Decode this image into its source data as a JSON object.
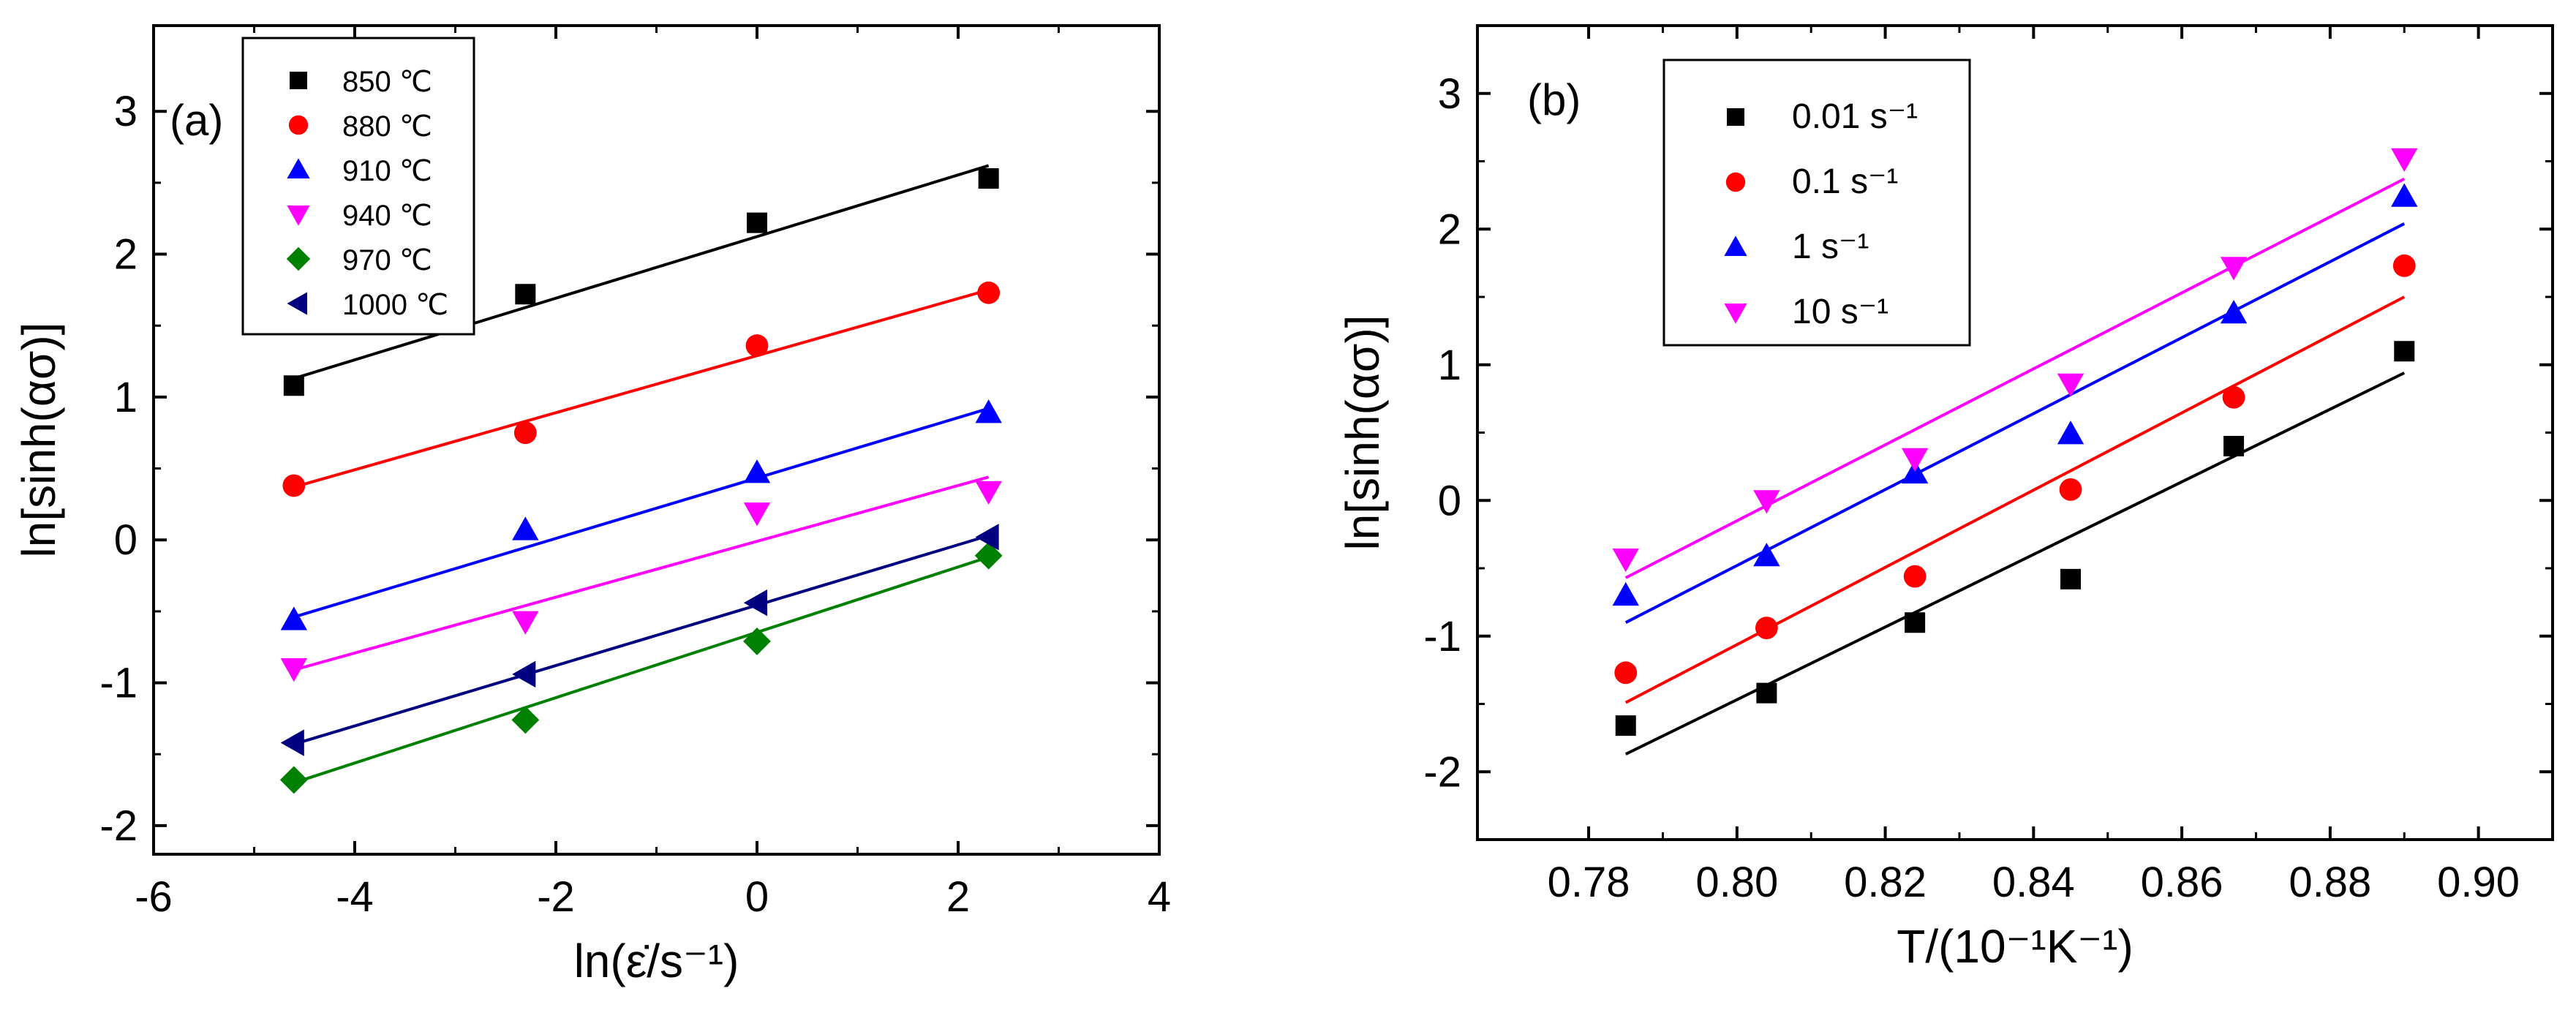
{
  "chart_data": [
    {
      "type": "scatter",
      "panel_label": "(a)",
      "xlabel": "ln(ε̇/s⁻¹)",
      "ylabel": "ln[sinh(ασ)]",
      "xlim": [
        -6,
        4
      ],
      "ylim": [
        -2.2,
        3.6
      ],
      "x_ticks": [
        -6,
        -4,
        -2,
        0,
        2,
        4
      ],
      "x_tick_labels": [
        "-6",
        "-4",
        "-2",
        "0",
        "2",
        "4"
      ],
      "y_ticks": [
        -2,
        -1,
        0,
        1,
        2,
        3
      ],
      "y_tick_labels": [
        "-2",
        "-1",
        "0",
        "1",
        "2",
        "3"
      ],
      "grid": false,
      "legend_position": "top-left",
      "x": [
        -4.605,
        -2.303,
        0,
        2.303
      ],
      "series": [
        {
          "name": "850 ℃",
          "marker": "square",
          "color": "#000000",
          "values": [
            1.08,
            1.72,
            2.22,
            2.53
          ],
          "fit": [
            [
              -4.605,
              1.13
            ],
            [
              2.303,
              2.62
            ]
          ]
        },
        {
          "name": "880 ℃",
          "marker": "circle",
          "color": "#ff0000",
          "values": [
            0.38,
            0.75,
            1.36,
            1.73
          ],
          "fit": [
            [
              -4.605,
              0.37
            ],
            [
              2.303,
              1.75
            ]
          ]
        },
        {
          "name": "910 ℃",
          "marker": "triangle-up",
          "color": "#0000ff",
          "values": [
            -0.56,
            0.07,
            0.47,
            0.89
          ],
          "fit": [
            [
              -4.605,
              -0.54
            ],
            [
              2.303,
              0.92
            ]
          ]
        },
        {
          "name": "940 ℃",
          "marker": "triangle-down",
          "color": "#ff00ff",
          "values": [
            -0.9,
            -0.57,
            0.19,
            0.34
          ],
          "fit": [
            [
              -4.605,
              -0.91
            ],
            [
              2.303,
              0.44
            ]
          ]
        },
        {
          "name": "970 ℃",
          "marker": "diamond",
          "color": "#008000",
          "values": [
            -1.68,
            -1.26,
            -0.71,
            -0.11
          ],
          "fit": [
            [
              -4.605,
              -1.7
            ],
            [
              2.303,
              -0.12
            ]
          ]
        },
        {
          "name": "1000 ℃",
          "marker": "triangle-left",
          "color": "#000080",
          "values": [
            -1.42,
            -0.94,
            -0.44,
            0.02
          ],
          "fit": [
            [
              -4.605,
              -1.43
            ],
            [
              2.303,
              0.03
            ]
          ]
        }
      ]
    },
    {
      "type": "scatter",
      "panel_label": "(b)",
      "xlabel": "T/(10⁻¹K⁻¹)",
      "ylabel": "ln[sinh(ασ)]",
      "xlim": [
        0.765,
        0.91
      ],
      "ylim": [
        -2.5,
        3.5
      ],
      "x_ticks": [
        0.78,
        0.8,
        0.82,
        0.84,
        0.86,
        0.88,
        0.9
      ],
      "x_tick_labels": [
        "0.78",
        "0.80",
        "0.82",
        "0.84",
        "0.86",
        "0.88",
        "0.90"
      ],
      "y_ticks": [
        -2,
        -1,
        0,
        1,
        2,
        3
      ],
      "y_tick_labels": [
        "-2",
        "-1",
        "0",
        "1",
        "2",
        "3"
      ],
      "grid": false,
      "legend_position": "top-left",
      "x": [
        0.785,
        0.804,
        0.824,
        0.845,
        0.867,
        0.89
      ],
      "series": [
        {
          "name": "0.01 s⁻¹",
          "marker": "square",
          "color": "#000000",
          "values": [
            -1.66,
            -1.42,
            -0.9,
            -0.58,
            0.4,
            1.1
          ],
          "fit": [
            [
              0.785,
              -1.87
            ],
            [
              0.89,
              0.94
            ]
          ]
        },
        {
          "name": "0.1 s⁻¹",
          "marker": "circle",
          "color": "#ff0000",
          "values": [
            -1.27,
            -0.94,
            -0.56,
            0.08,
            0.76,
            1.73
          ],
          "fit": [
            [
              0.785,
              -1.49
            ],
            [
              0.89,
              1.5
            ]
          ]
        },
        {
          "name": "1 s⁻¹",
          "marker": "triangle-up",
          "color": "#0000ff",
          "values": [
            -0.7,
            -0.41,
            0.2,
            0.49,
            1.38,
            2.24
          ],
          "fit": [
            [
              0.785,
              -0.9
            ],
            [
              0.89,
              2.04
            ]
          ]
        },
        {
          "name": "10 s⁻¹",
          "marker": "triangle-down",
          "color": "#ff00ff",
          "values": [
            -0.43,
            0.0,
            0.31,
            0.86,
            1.72,
            2.52
          ],
          "fit": [
            [
              0.785,
              -0.57
            ],
            [
              0.89,
              2.37
            ]
          ]
        }
      ]
    }
  ]
}
